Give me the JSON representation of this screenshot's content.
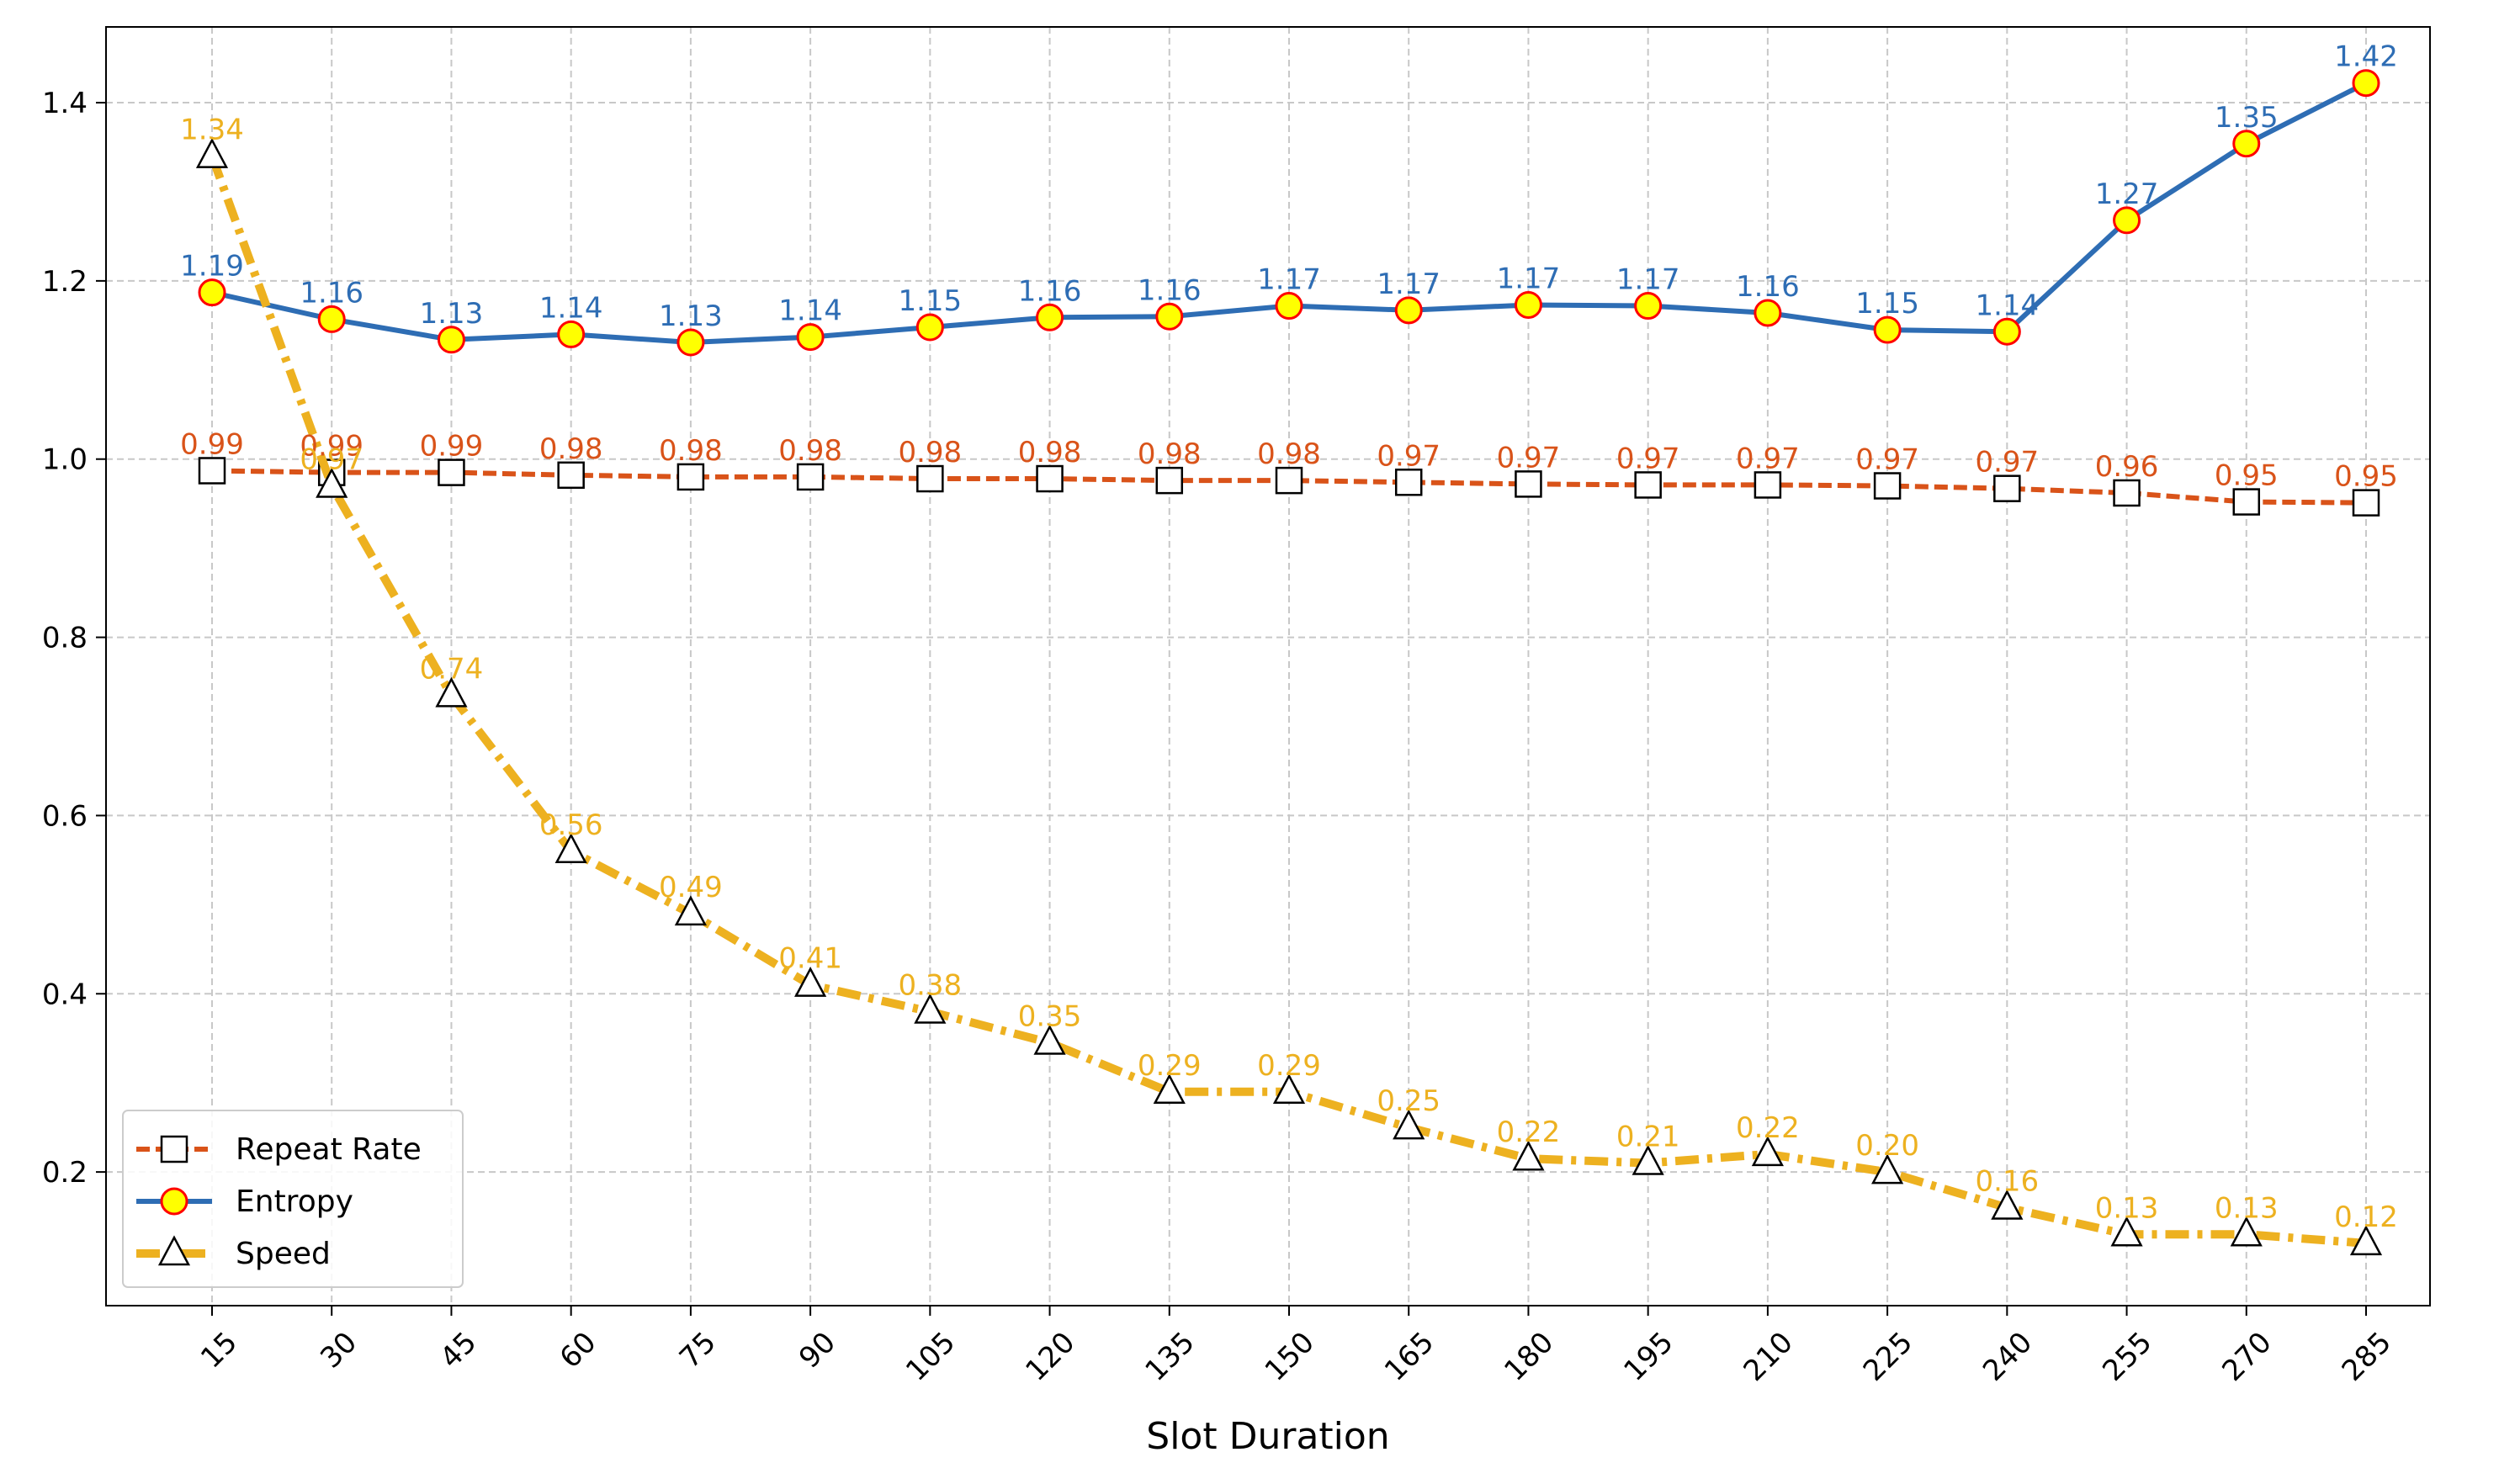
{
  "chart_data": {
    "type": "line",
    "title": "",
    "xlabel": "Slot Duration",
    "ylabel": "",
    "categories": [
      "15",
      "30",
      "45",
      "60",
      "75",
      "90",
      "105",
      "120",
      "135",
      "150",
      "165",
      "180",
      "195",
      "210",
      "225",
      "240",
      "255",
      "270",
      "285"
    ],
    "ylim": [
      0.05,
      1.485
    ],
    "yticks": [
      0.2,
      0.4,
      0.6,
      0.8,
      1.0,
      1.2,
      1.4
    ],
    "ytick_labels": [
      "0.2",
      "0.4",
      "0.6",
      "0.8",
      "1.0",
      "1.2",
      "1.4"
    ],
    "grid": true,
    "legend_position": "lower-left",
    "series": [
      {
        "name": "Repeat Rate",
        "key": "repeat",
        "color": "#d95319",
        "line_style": "dashed",
        "marker": "square",
        "values": [
          0.987,
          0.985,
          0.985,
          0.982,
          0.98,
          0.98,
          0.978,
          0.978,
          0.976,
          0.976,
          0.974,
          0.972,
          0.971,
          0.971,
          0.97,
          0.967,
          0.962,
          0.952,
          0.951
        ],
        "labels": [
          "0.99",
          "0.99",
          "0.99",
          "0.98",
          "0.98",
          "0.98",
          "0.98",
          "0.98",
          "0.98",
          "0.98",
          "0.97",
          "0.97",
          "0.97",
          "0.97",
          "0.97",
          "0.97",
          "0.96",
          "0.95",
          "0.95"
        ]
      },
      {
        "name": "Entropy",
        "key": "entropy",
        "color": "#2e6db4",
        "line_style": "solid",
        "marker": "circle",
        "marker_fill": "#ffff00",
        "marker_edge": "#ff0000",
        "values": [
          1.187,
          1.157,
          1.134,
          1.14,
          1.131,
          1.137,
          1.148,
          1.159,
          1.16,
          1.172,
          1.167,
          1.173,
          1.172,
          1.164,
          1.145,
          1.143,
          1.268,
          1.354,
          1.422
        ],
        "labels": [
          "1.19",
          "1.16",
          "1.13",
          "1.14",
          "1.13",
          "1.14",
          "1.15",
          "1.16",
          "1.16",
          "1.17",
          "1.17",
          "1.17",
          "1.17",
          "1.16",
          "1.15",
          "1.14",
          "1.27",
          "1.35",
          "1.42"
        ]
      },
      {
        "name": "Speed",
        "key": "speed",
        "color": "#edb120",
        "line_style": "dashdot",
        "marker": "triangle",
        "values": [
          1.34,
          0.97,
          0.735,
          0.56,
          0.49,
          0.41,
          0.38,
          0.345,
          0.29,
          0.29,
          0.25,
          0.215,
          0.21,
          0.22,
          0.2,
          0.16,
          0.13,
          0.13,
          0.12
        ],
        "labels": [
          "1.34",
          "0.97",
          "0.74",
          "0.56",
          "0.49",
          "0.41",
          "0.38",
          "0.35",
          "0.29",
          "0.29",
          "0.25",
          "0.22",
          "0.21",
          "0.22",
          "0.20",
          "0.16",
          "0.13",
          "0.13",
          "0.12"
        ]
      }
    ]
  }
}
